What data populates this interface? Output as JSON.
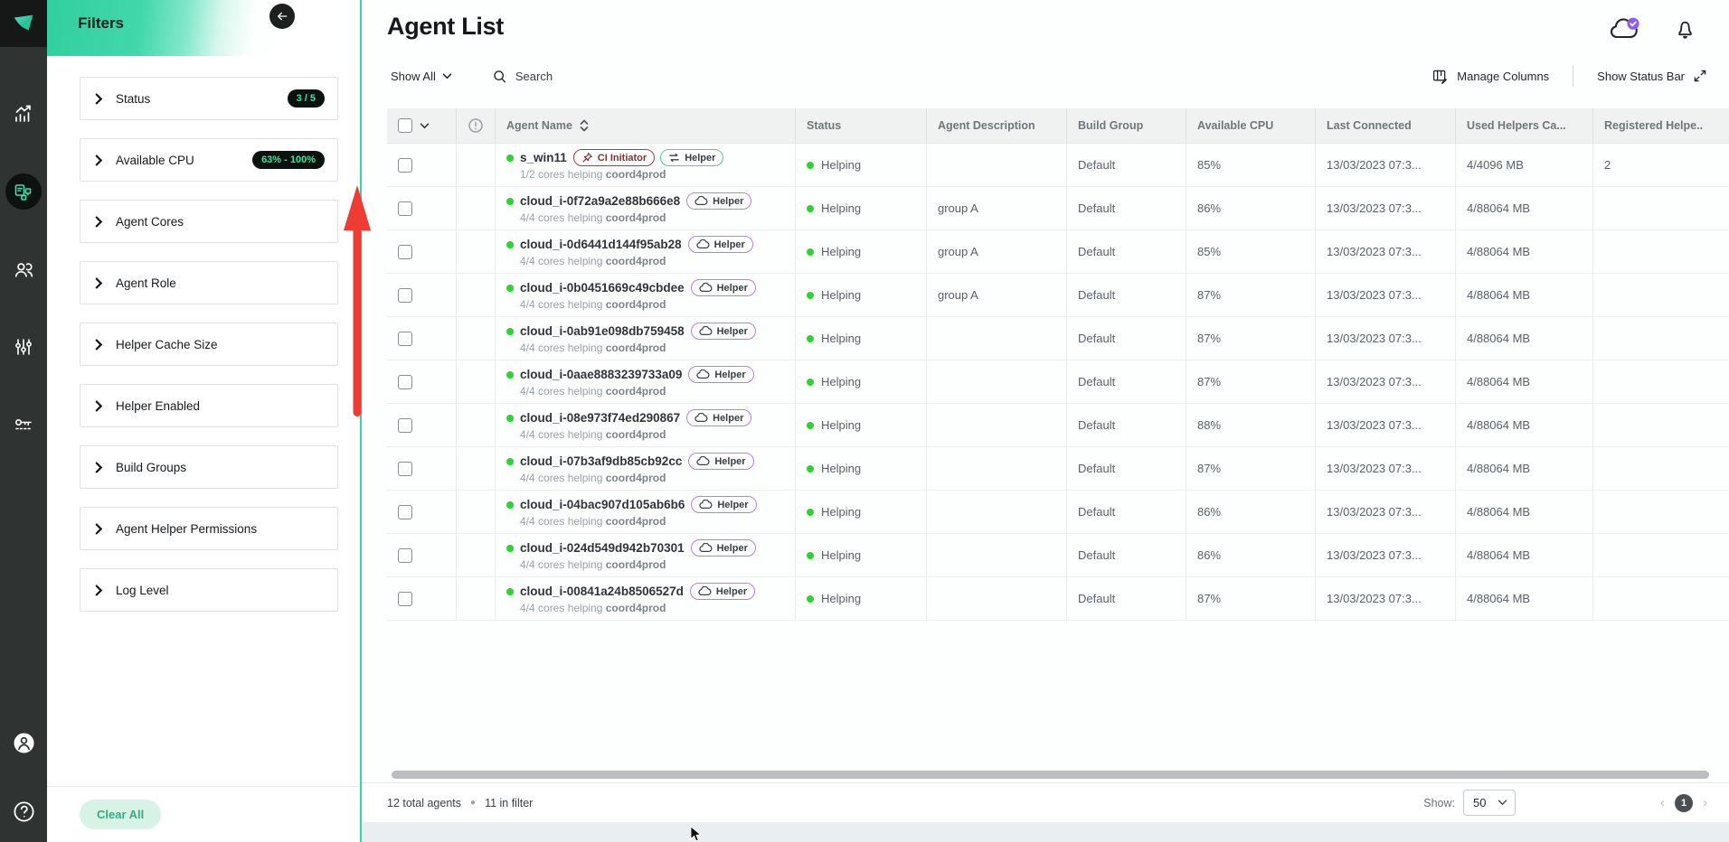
{
  "colors": {
    "accent_teal": "#2fd0a2",
    "badge_pill_bg": "#0c120f",
    "badge_pill_text": "#3fe396",
    "status_green": "#2fd134",
    "annotation_red": "#ee3b33",
    "cloud_check_purple": "#8b5cf6"
  },
  "filters": {
    "title": "Filters",
    "items": [
      {
        "label": "Status",
        "badge": "3 / 5"
      },
      {
        "label": "Available CPU",
        "badge": "63% - 100%"
      },
      {
        "label": "Agent Cores"
      },
      {
        "label": "Agent Role"
      },
      {
        "label": "Helper Cache Size"
      },
      {
        "label": "Helper Enabled"
      },
      {
        "label": "Build Groups"
      },
      {
        "label": "Agent Helper Permissions"
      },
      {
        "label": "Log Level"
      }
    ],
    "clear_all": "Clear All"
  },
  "header": {
    "title": "Agent List"
  },
  "toolbar": {
    "show_all": "Show All",
    "search_placeholder": "Search",
    "manage_columns": "Manage Columns",
    "show_status_bar": "Show Status Bar"
  },
  "badges": {
    "ci": {
      "label": "CI Initiator"
    },
    "helper_sync": {
      "label": "Helper"
    },
    "helper_cloud": {
      "label": "Helper"
    }
  },
  "table": {
    "columns": [
      "Agent Name",
      "Status",
      "Agent Description",
      "Build Group",
      "Available CPU",
      "Last Connected",
      "Used Helpers Ca...",
      "Registered Helpe.."
    ],
    "rows": [
      {
        "name": "s_win11",
        "badges": [
          "ci",
          "helper_sync"
        ],
        "sub_text": "1/2 cores helping",
        "sub_bold": "coord4prod",
        "status": "Helping",
        "description": "",
        "build_group": "Default",
        "cpu": "85%",
        "last_connected": "13/03/2023 07:3...",
        "used_helpers": "4/4096 MB",
        "registered": "2"
      },
      {
        "name": "cloud_i-0f72a9a2e88b666e8",
        "badges": [
          "helper_cloud"
        ],
        "sub_text": "4/4 cores helping",
        "sub_bold": "coord4prod",
        "status": "Helping",
        "description": "group A",
        "build_group": "Default",
        "cpu": "86%",
        "last_connected": "13/03/2023 07:3...",
        "used_helpers": "4/88064 MB",
        "registered": ""
      },
      {
        "name": "cloud_i-0d6441d144f95ab28",
        "badges": [
          "helper_cloud"
        ],
        "sub_text": "4/4 cores helping",
        "sub_bold": "coord4prod",
        "status": "Helping",
        "description": "group A",
        "build_group": "Default",
        "cpu": "85%",
        "last_connected": "13/03/2023 07:3...",
        "used_helpers": "4/88064 MB",
        "registered": ""
      },
      {
        "name": "cloud_i-0b0451669c49cbdee",
        "badges": [
          "helper_cloud"
        ],
        "sub_text": "4/4 cores helping",
        "sub_bold": "coord4prod",
        "status": "Helping",
        "description": "group A",
        "build_group": "Default",
        "cpu": "87%",
        "last_connected": "13/03/2023 07:3...",
        "used_helpers": "4/88064 MB",
        "registered": ""
      },
      {
        "name": "cloud_i-0ab91e098db759458",
        "badges": [
          "helper_cloud"
        ],
        "sub_text": "4/4 cores helping",
        "sub_bold": "coord4prod",
        "status": "Helping",
        "description": "",
        "build_group": "Default",
        "cpu": "87%",
        "last_connected": "13/03/2023 07:3...",
        "used_helpers": "4/88064 MB",
        "registered": ""
      },
      {
        "name": "cloud_i-0aae8883239733a09",
        "badges": [
          "helper_cloud"
        ],
        "sub_text": "4/4 cores helping",
        "sub_bold": "coord4prod",
        "status": "Helping",
        "description": "",
        "build_group": "Default",
        "cpu": "87%",
        "last_connected": "13/03/2023 07:3...",
        "used_helpers": "4/88064 MB",
        "registered": ""
      },
      {
        "name": "cloud_i-08e973f74ed290867",
        "badges": [
          "helper_cloud"
        ],
        "sub_text": "4/4 cores helping",
        "sub_bold": "coord4prod",
        "status": "Helping",
        "description": "",
        "build_group": "Default",
        "cpu": "88%",
        "last_connected": "13/03/2023 07:3...",
        "used_helpers": "4/88064 MB",
        "registered": ""
      },
      {
        "name": "cloud_i-07b3af9db85cb92cc",
        "badges": [
          "helper_cloud"
        ],
        "sub_text": "4/4 cores helping",
        "sub_bold": "coord4prod",
        "status": "Helping",
        "description": "",
        "build_group": "Default",
        "cpu": "87%",
        "last_connected": "13/03/2023 07:3...",
        "used_helpers": "4/88064 MB",
        "registered": ""
      },
      {
        "name": "cloud_i-04bac907d105ab6b6",
        "badges": [
          "helper_cloud"
        ],
        "sub_text": "4/4 cores helping",
        "sub_bold": "coord4prod",
        "status": "Helping",
        "description": "",
        "build_group": "Default",
        "cpu": "86%",
        "last_connected": "13/03/2023 07:3...",
        "used_helpers": "4/88064 MB",
        "registered": ""
      },
      {
        "name": "cloud_i-024d549d942b70301",
        "badges": [
          "helper_cloud"
        ],
        "sub_text": "4/4 cores helping",
        "sub_bold": "coord4prod",
        "status": "Helping",
        "description": "",
        "build_group": "Default",
        "cpu": "86%",
        "last_connected": "13/03/2023 07:3...",
        "used_helpers": "4/88064 MB",
        "registered": ""
      },
      {
        "name": "cloud_i-00841a24b8506527d",
        "badges": [
          "helper_cloud"
        ],
        "sub_text": "4/4 cores helping",
        "sub_bold": "coord4prod",
        "status": "Helping",
        "description": "",
        "build_group": "Default",
        "cpu": "87%",
        "last_connected": "13/03/2023 07:3...",
        "used_helpers": "4/88064 MB",
        "registered": ""
      }
    ]
  },
  "footer": {
    "total": "12 total agents",
    "in_filter": "11 in filter",
    "show_label": "Show:",
    "page_size": "50",
    "page": "1"
  }
}
